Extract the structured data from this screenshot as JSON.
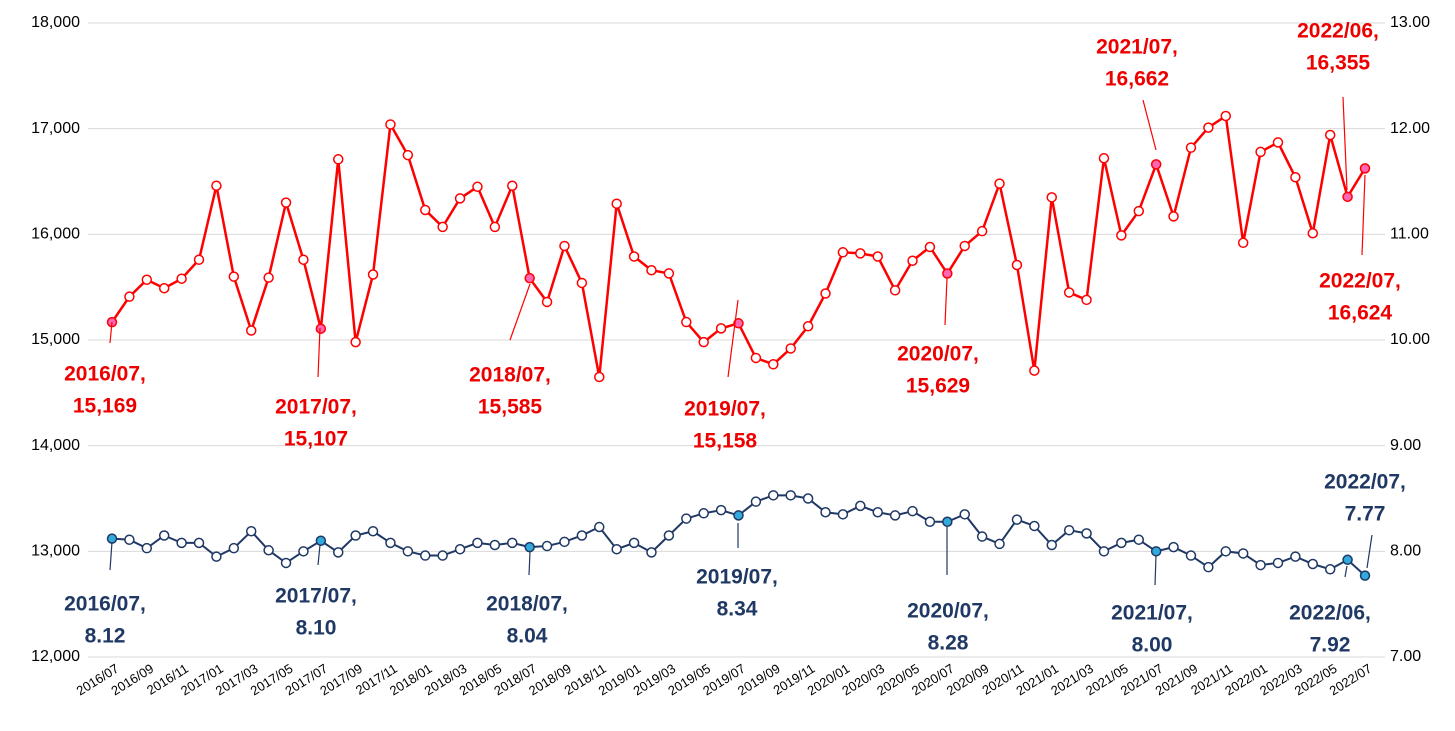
{
  "chart_data": {
    "type": "line",
    "categories": [
      "2016/07",
      null,
      "2016/09",
      null,
      "2016/11",
      null,
      "2017/01",
      null,
      "2017/03",
      null,
      "2017/05",
      null,
      "2017/07",
      null,
      "2017/09",
      null,
      "2017/11",
      null,
      "2018/01",
      null,
      "2018/03",
      null,
      "2018/05",
      null,
      "2018/07",
      null,
      "2018/09",
      null,
      "2018/11",
      null,
      "2019/01",
      null,
      "2019/03",
      null,
      "2019/05",
      null,
      "2019/07",
      null,
      "2019/09",
      null,
      "2019/11",
      null,
      "2020/01",
      null,
      "2020/03",
      null,
      "2020/05",
      null,
      "2020/07",
      null,
      "2020/09",
      null,
      "2020/11",
      null,
      "2021/01",
      null,
      "2021/03",
      null,
      "2021/05",
      null,
      "2021/07",
      null,
      "2021/09",
      null,
      "2021/11",
      null,
      "2022/01",
      null,
      "2022/03",
      null,
      "2022/05",
      null,
      "2022/07"
    ],
    "series": [
      {
        "color": "#ff0000",
        "highlight": "#ff66b3",
        "label_color": "#ee0000",
        "values": [
          15169,
          15410,
          15570,
          15490,
          15580,
          15760,
          16460,
          15600,
          15090,
          15590,
          16300,
          15760,
          15107,
          16710,
          14980,
          15620,
          17040,
          16750,
          16230,
          16070,
          16340,
          16450,
          16070,
          16460,
          15585,
          15360,
          15890,
          15540,
          14650,
          16290,
          15790,
          15660,
          15630,
          15170,
          14980,
          15110,
          15158,
          14830,
          14770,
          14920,
          15130,
          15440,
          15830,
          15820,
          15790,
          15470,
          15750,
          15880,
          15629,
          15890,
          16030,
          16480,
          15710,
          14710,
          16350,
          15450,
          15380,
          16720,
          15990,
          16220,
          16662,
          16170,
          16820,
          17010,
          17120,
          15920,
          16780,
          16870,
          16540,
          16010,
          16940,
          16355,
          16624
        ],
        "value_labels": [
          [
            "2016/07,",
            "15,169"
          ],
          null,
          null,
          null,
          null,
          null,
          null,
          null,
          null,
          null,
          null,
          null,
          [
            "2017/07,",
            "15,107"
          ],
          null,
          null,
          null,
          null,
          null,
          null,
          null,
          null,
          null,
          null,
          null,
          [
            "2018/07,",
            "15,585"
          ],
          null,
          null,
          null,
          null,
          null,
          null,
          null,
          null,
          null,
          null,
          null,
          [
            "2019/07,",
            "15,158"
          ],
          null,
          null,
          null,
          null,
          null,
          null,
          null,
          null,
          null,
          null,
          null,
          [
            "2020/07,",
            "15,629"
          ],
          null,
          null,
          null,
          null,
          null,
          null,
          null,
          null,
          null,
          null,
          null,
          [
            "2021/07,",
            "16,662"
          ],
          null,
          null,
          null,
          null,
          null,
          null,
          null,
          null,
          null,
          null,
          [
            "2022/06,",
            "16,355"
          ],
          [
            "2022/07,",
            "16,624"
          ]
        ]
      },
      {
        "color": "#1f3864",
        "highlight": "#33aadd",
        "label_color": "#1f3864",
        "axis": "y2",
        "values": [
          8.12,
          8.11,
          8.03,
          8.15,
          8.08,
          8.08,
          7.95,
          8.03,
          8.19,
          8.01,
          7.89,
          8.0,
          8.1,
          7.99,
          8.15,
          8.19,
          8.08,
          8.0,
          7.96,
          7.96,
          8.02,
          8.08,
          8.06,
          8.08,
          8.04,
          8.05,
          8.09,
          8.15,
          8.23,
          8.02,
          8.08,
          7.99,
          8.15,
          8.31,
          8.36,
          8.39,
          8.34,
          8.47,
          8.53,
          8.53,
          8.5,
          8.37,
          8.35,
          8.43,
          8.37,
          8.34,
          8.38,
          8.28,
          8.28,
          8.35,
          8.14,
          8.07,
          8.3,
          8.24,
          8.06,
          8.2,
          8.17,
          8.0,
          8.08,
          8.11,
          8.0,
          8.04,
          7.96,
          7.85,
          8.0,
          7.98,
          7.87,
          7.89,
          7.95,
          7.88,
          7.83,
          7.92,
          7.77
        ],
        "value_labels": [
          [
            "2016/07,",
            "8.12"
          ],
          null,
          null,
          null,
          null,
          null,
          null,
          null,
          null,
          null,
          null,
          null,
          [
            "2017/07,",
            "8.10"
          ],
          null,
          null,
          null,
          null,
          null,
          null,
          null,
          null,
          null,
          null,
          null,
          [
            "2018/07,",
            "8.04"
          ],
          null,
          null,
          null,
          null,
          null,
          null,
          null,
          null,
          null,
          null,
          null,
          [
            "2019/07,",
            "8.34"
          ],
          null,
          null,
          null,
          null,
          null,
          null,
          null,
          null,
          null,
          null,
          null,
          [
            "2020/07,",
            "8.28"
          ],
          null,
          null,
          null,
          null,
          null,
          null,
          null,
          null,
          null,
          null,
          null,
          [
            "2021/07,",
            "8.00"
          ],
          null,
          null,
          null,
          null,
          null,
          null,
          null,
          null,
          null,
          null,
          [
            "2022/06,",
            "7.92"
          ],
          [
            "2022/07,",
            "7.77"
          ]
        ]
      }
    ],
    "ylim": [
      12000,
      18000
    ],
    "yticks": [
      {
        "value": 12000,
        "label": "12,000"
      },
      {
        "value": 13000,
        "label": "13,000"
      },
      {
        "value": 14000,
        "label": "14,000"
      },
      {
        "value": 15000,
        "label": "15,000"
      },
      {
        "value": 16000,
        "label": "16,000"
      },
      {
        "value": 17000,
        "label": "17,000"
      },
      {
        "value": 18000,
        "label": "18,000"
      }
    ],
    "y2lim": [
      7,
      13
    ],
    "y2ticks": [
      {
        "value": 7,
        "label": "7.00"
      },
      {
        "value": 8,
        "label": "8.00"
      },
      {
        "value": 9,
        "label": "9.00"
      },
      {
        "value": 10,
        "label": "10.00"
      },
      {
        "value": 11,
        "label": "11.00"
      },
      {
        "value": 12,
        "label": "12.00"
      },
      {
        "value": 13,
        "label": "13.00"
      }
    ],
    "grid": true
  }
}
